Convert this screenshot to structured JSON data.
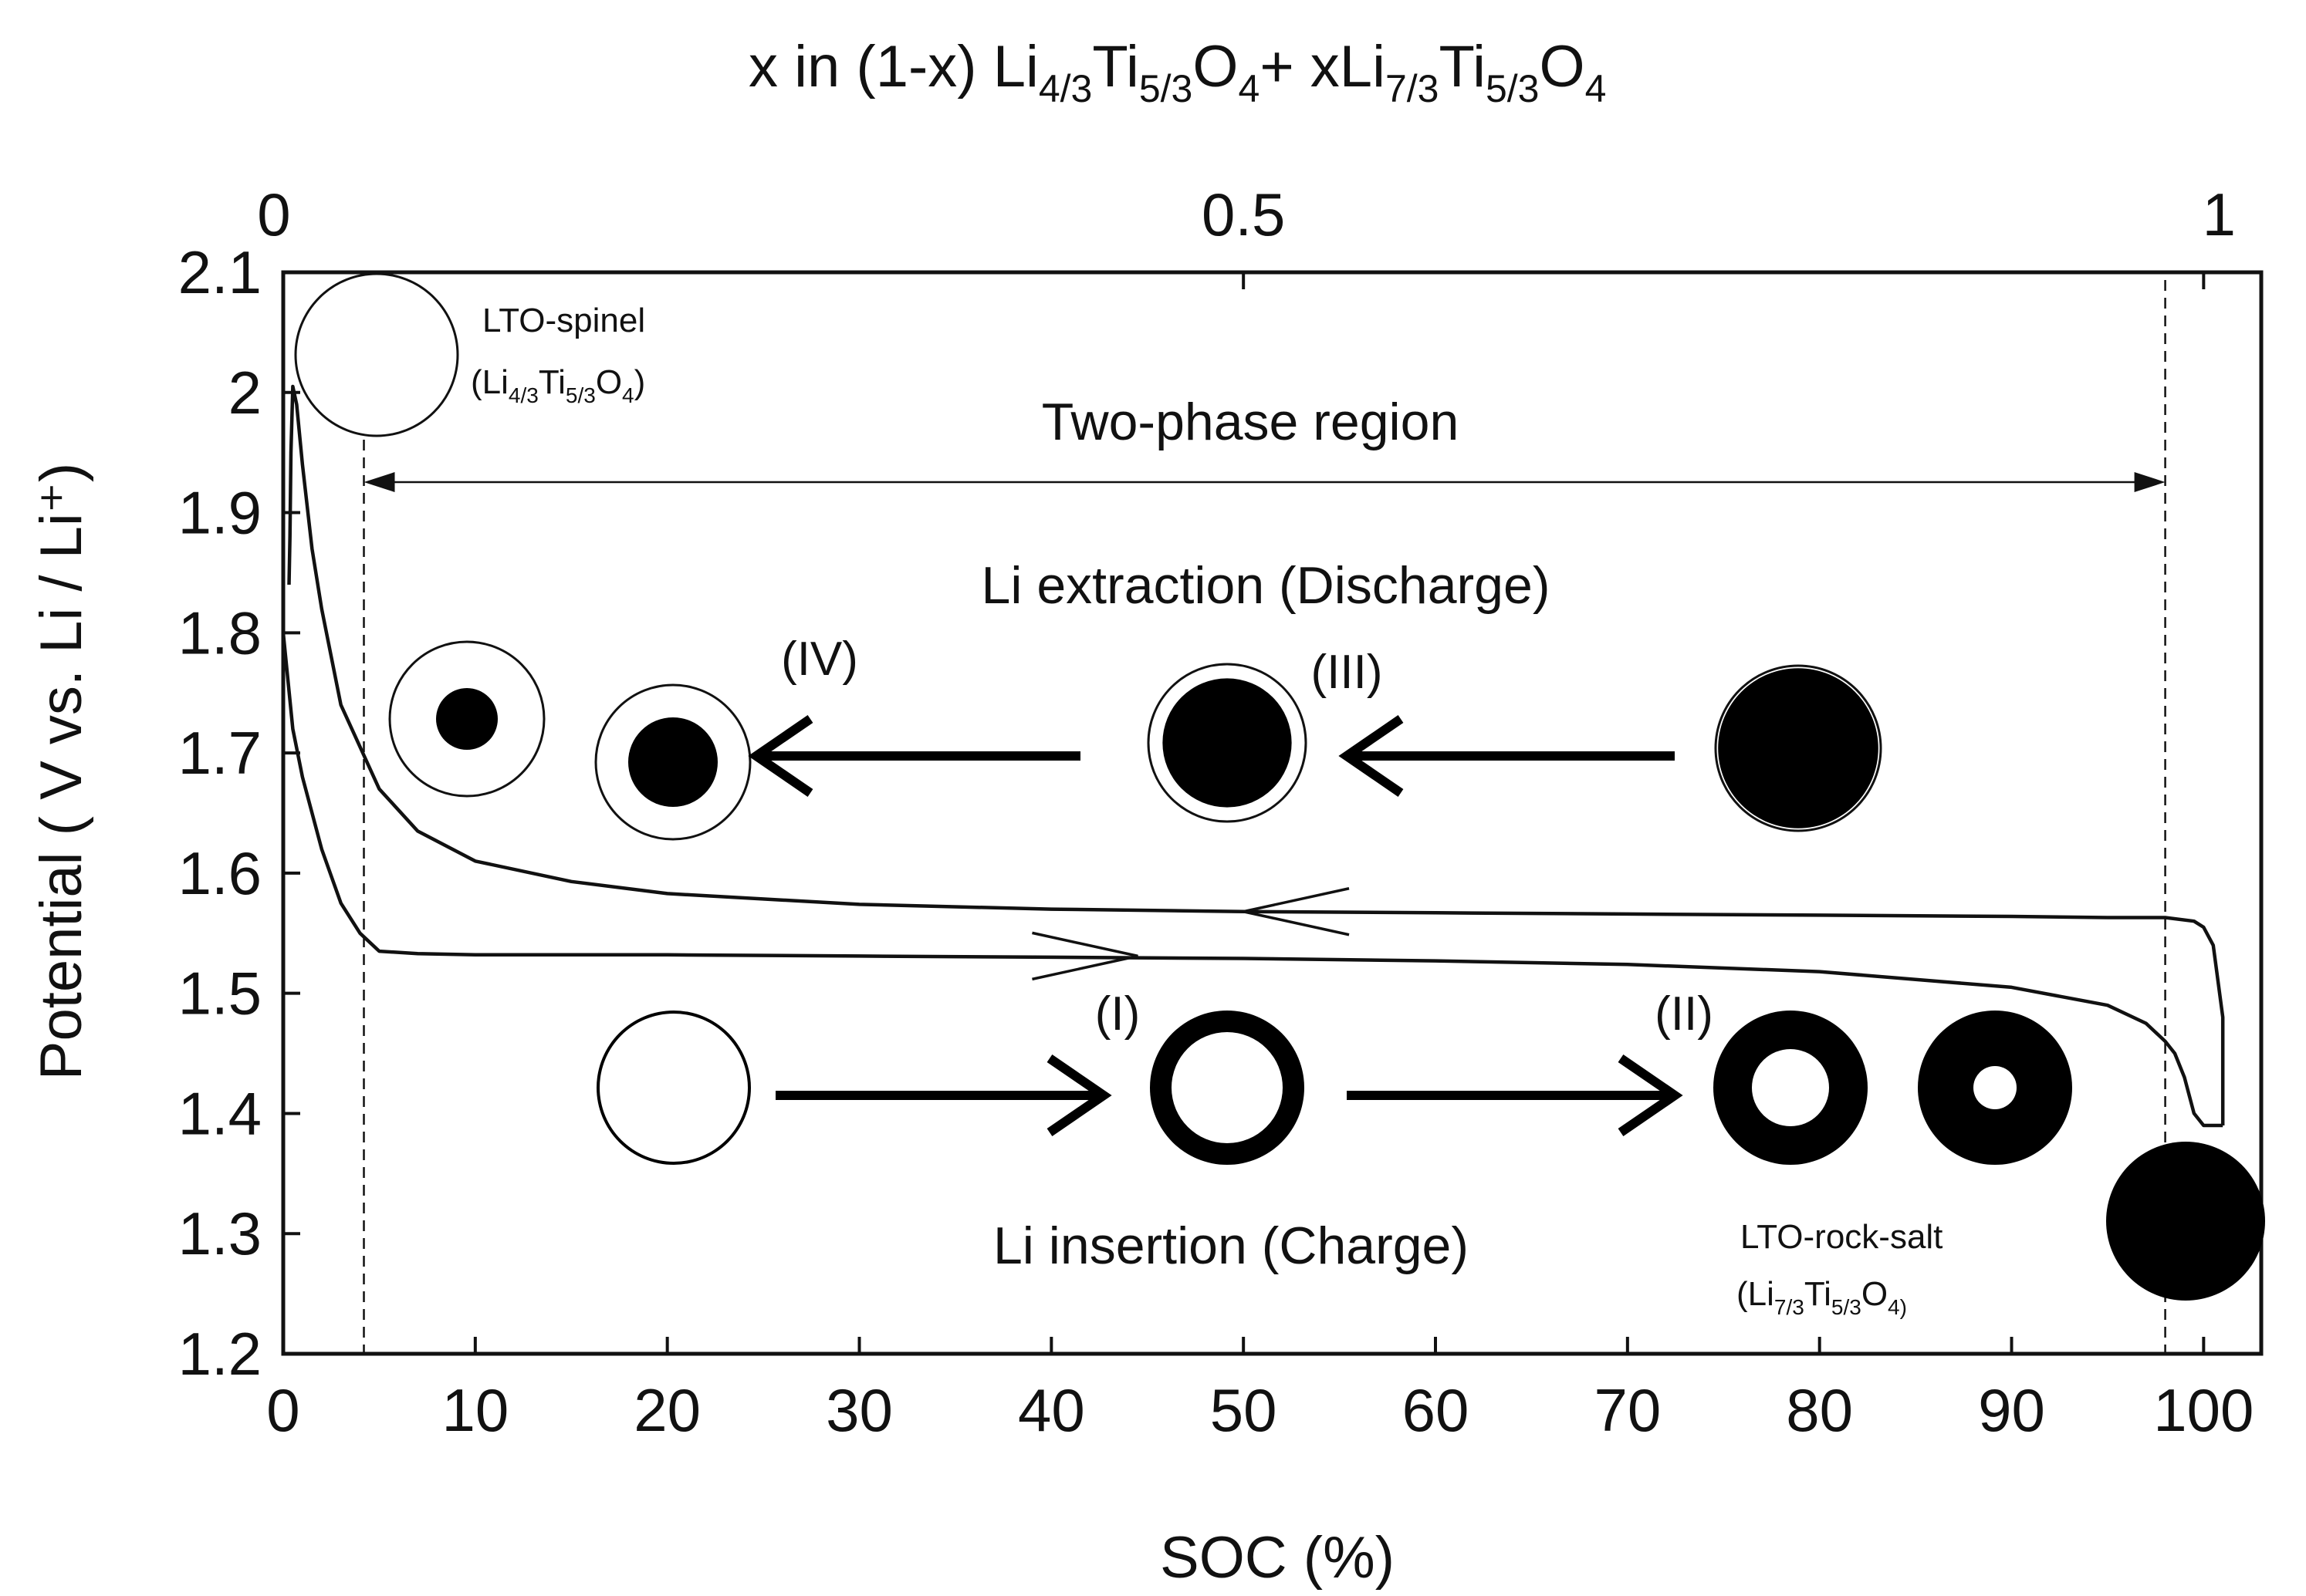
{
  "chart_data": {
    "type": "line",
    "xlabel": "SOC (%)",
    "ylabel": "Potential ( V vs. Li / Li⁺)",
    "xlim": [
      0,
      103
    ],
    "ylim": [
      1.2,
      2.1
    ],
    "x_ticks": [
      0,
      10,
      20,
      30,
      40,
      50,
      60,
      70,
      80,
      90,
      100
    ],
    "y_ticks": [
      1.2,
      1.3,
      1.4,
      1.5,
      1.6,
      1.7,
      1.8,
      1.9,
      2.0,
      2.1
    ],
    "x_tick_labels": [
      "0",
      "10",
      "20",
      "30",
      "40",
      "50",
      "60",
      "70",
      "80",
      "90",
      "100"
    ],
    "y_tick_labels": [
      "1.2",
      "1.3",
      "1.4",
      "1.5",
      "1.6",
      "1.7",
      "1.8",
      "1.9",
      "2",
      "2.1"
    ],
    "top_axis": {
      "label_parts": [
        "x in (1-x) Li",
        "4/3",
        "Ti",
        "5/3",
        "O",
        "4",
        "+ xLi",
        "7/3",
        "Ti",
        "5/3",
        "O",
        "4"
      ],
      "ticks": [
        0,
        0.5,
        1
      ],
      "tick_labels": [
        "0",
        "0.5",
        "1"
      ]
    },
    "grid": false,
    "series": [
      {
        "direction": "charge",
        "x": [
          0,
          0.5,
          1,
          2,
          3,
          4,
          5,
          7,
          10,
          15,
          20,
          30,
          40,
          50,
          60,
          70,
          80,
          90,
          95,
          97,
          98,
          98.5,
          99,
          99.5,
          100,
          100.5,
          101
        ],
        "y": [
          1.8,
          1.72,
          1.68,
          1.62,
          1.575,
          1.55,
          1.535,
          1.533,
          1.532,
          1.532,
          1.532,
          1.531,
          1.53,
          1.529,
          1.527,
          1.524,
          1.518,
          1.505,
          1.49,
          1.475,
          1.46,
          1.45,
          1.43,
          1.4,
          1.39,
          1.39,
          1.39
        ]
      },
      {
        "direction": "discharge",
        "x": [
          101,
          101,
          100.5,
          100,
          99.5,
          98,
          95,
          90,
          80,
          70,
          60,
          50,
          40,
          30,
          20,
          15,
          10,
          7,
          5,
          3,
          2,
          1.5,
          1,
          0.7,
          0.5,
          0.4,
          0.35,
          0.3
        ],
        "y": [
          1.39,
          1.48,
          1.54,
          1.555,
          1.56,
          1.563,
          1.563,
          1.564,
          1.565,
          1.566,
          1.567,
          1.568,
          1.57,
          1.574,
          1.583,
          1.593,
          1.61,
          1.635,
          1.67,
          1.74,
          1.82,
          1.87,
          1.94,
          1.99,
          2.005,
          1.95,
          1.88,
          1.84
        ]
      }
    ],
    "boundary_lines_x": [
      4.2,
      98
    ],
    "annotations": {
      "two_phase": "Two-phase region",
      "extraction": "Li extraction  (Discharge)",
      "insertion": "Li insertion (Charge)",
      "spinel_name": "LTO-spinel",
      "spinel_formula": [
        "(Li",
        "4/3",
        "Ti",
        "5/3",
        "O",
        "4",
        ")"
      ],
      "rocksalt_name": "LTO-rock-salt",
      "rocksalt_formula": [
        "(Li",
        "7/3",
        "Ti",
        "5/3",
        "O",
        "4)"
      ],
      "stage_labels": [
        "(I)",
        "(II)",
        "(III)",
        "(IV)"
      ]
    },
    "particle_states": {
      "charge_inner_radius_fraction": [
        1.0,
        0.72,
        0.5,
        0.28
      ],
      "discharge_core_radius_fraction": [
        0.97,
        0.82,
        0.58,
        0.4
      ],
      "spinel_core_fraction": 0.0,
      "rocksalt_core_fraction": 1.0
    }
  }
}
